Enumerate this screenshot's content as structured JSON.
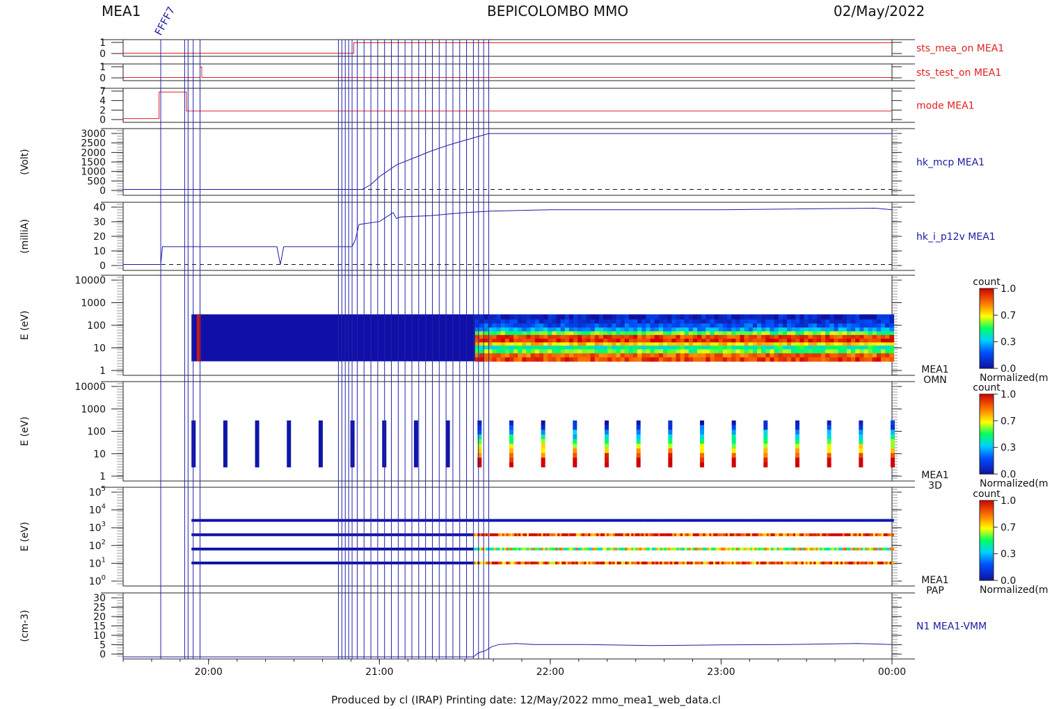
{
  "header": {
    "instrument": "MEA1",
    "mission": "BEPICOLOMBO MMO",
    "date": "02/May/2022"
  },
  "footer": {
    "text": "Produced by cl (IRAP)    Printing date: 12/May/2022    mmo_mea1_web_data.cl"
  },
  "colors": {
    "status_trace": "#e02020",
    "hk_trace": "#1a1aa0",
    "event_marker": "#2222aa"
  },
  "chart_data": {
    "type": "line",
    "x_axis": {
      "range": [
        "19:30",
        "00:00"
      ],
      "tick_labels": [
        "20:00",
        "21:00",
        "22:00",
        "23:00",
        "00:00"
      ],
      "tick_hours": [
        20,
        21,
        22,
        23,
        24
      ]
    },
    "event_markers": {
      "label_text": "FFFF7",
      "hours": [
        19.72,
        19.86,
        19.88,
        19.91,
        19.95,
        20.76,
        20.78,
        20.8,
        20.82,
        20.84,
        20.87,
        20.91,
        20.95,
        20.99,
        21.03,
        21.07,
        21.11,
        21.15,
        21.19,
        21.23,
        21.27,
        21.31,
        21.35,
        21.39,
        21.43,
        21.47,
        21.51,
        21.55,
        21.58,
        21.61,
        21.64
      ]
    },
    "panels": [
      {
        "type": "line",
        "trace_label": "sts_mea_on MEA1",
        "ylabel": "",
        "y_ticks": [
          "1",
          "0"
        ],
        "ylim": [
          -0.3,
          1.3
        ],
        "x": [
          19.5,
          20.85,
          20.85,
          24
        ],
        "y": [
          0,
          0,
          1,
          1
        ]
      },
      {
        "type": "line",
        "trace_label": "sts_test_on MEA1",
        "ylabel": "",
        "y_ticks": [
          "1",
          "0"
        ],
        "ylim": [
          -0.3,
          1.3
        ],
        "x": [
          19.5,
          19.95,
          19.95,
          19.96,
          19.96,
          24
        ],
        "y": [
          0,
          0,
          1,
          1,
          0,
          0
        ]
      },
      {
        "type": "line",
        "trace_label": "mode MEA1",
        "ylabel": "",
        "y_ticks": [
          "7",
          "4",
          "2",
          "0"
        ],
        "ylim": [
          -1,
          8
        ],
        "x": [
          19.5,
          19.71,
          19.71,
          19.87,
          19.87,
          24
        ],
        "y": [
          0,
          0,
          7,
          7,
          2,
          2
        ]
      },
      {
        "type": "line",
        "trace_label": "hk_mcp MEA1",
        "ylabel": "(Volt)",
        "y_ticks": [
          "3000",
          "2500",
          "2000",
          "1500",
          "1000",
          "500",
          "0"
        ],
        "ylim": [
          -300,
          3100
        ],
        "zero_line": true,
        "x": [
          19.5,
          20.9,
          20.95,
          21.0,
          21.05,
          21.1,
          21.2,
          21.3,
          21.4,
          21.5,
          21.6,
          21.64,
          24
        ],
        "y": [
          0,
          0,
          250,
          650,
          950,
          1250,
          1600,
          1950,
          2250,
          2500,
          2750,
          2850,
          2850
        ]
      },
      {
        "type": "line",
        "trace_label": "hk_i_p12v MEA1",
        "ylabel": "(milliA)",
        "y_ticks": [
          "40",
          "30",
          "20",
          "10",
          "0"
        ],
        "ylim": [
          -4,
          42
        ],
        "zero_line": true,
        "x": [
          19.5,
          19.72,
          19.73,
          20.4,
          20.42,
          20.44,
          20.84,
          20.86,
          20.88,
          21.0,
          21.08,
          21.1,
          21.12,
          21.3,
          21.5,
          21.65,
          22.0,
          23.0,
          23.9,
          24
        ],
        "y": [
          0,
          0,
          12,
          12,
          0,
          12,
          12,
          17,
          27,
          29,
          35,
          31,
          32,
          33,
          35,
          36,
          37,
          37,
          38,
          37
        ]
      },
      {
        "type": "heatmap",
        "trace_label": "MEA1 OMN",
        "ylabel": "E (eV)",
        "y_ticks": [
          "10000",
          "1000",
          "100",
          "10",
          "1"
        ],
        "colorbar": {
          "title": "count",
          "ticks": [
            "1.0",
            "0.7",
            "0.3",
            "0.0"
          ],
          "label": "Normalized(m"
        }
      },
      {
        "type": "heatmap",
        "trace_label": "MEA1 3D",
        "ylabel": "E (eV)",
        "y_ticks": [
          "10000",
          "1000",
          "100",
          "10",
          "1"
        ],
        "colorbar": {
          "title": "count",
          "ticks": [
            "1.0",
            "0.7",
            "0.3",
            "0.0"
          ],
          "label": "Normalized(m"
        }
      },
      {
        "type": "heatmap",
        "trace_label": "MEA1 PAP",
        "ylabel": "E (eV)",
        "y_ticks": [
          "10",
          "10",
          "10",
          "10",
          "10",
          "10"
        ],
        "y_tick_exponents": [
          "5",
          "4",
          "3",
          "2",
          "1",
          "0"
        ],
        "colorbar": {
          "title": "count",
          "ticks": [
            "1.0",
            "0.7",
            "0.3",
            "0.0"
          ],
          "label": "Normalized(m"
        }
      },
      {
        "type": "line",
        "trace_label": "N1 MEA1-VMM",
        "ylabel": "(cm-3)",
        "y_ticks": [
          "30",
          "25",
          "20",
          "15",
          "10",
          "5",
          "0"
        ],
        "ylim": [
          -1,
          31
        ],
        "x": [
          19.5,
          21.55,
          21.58,
          21.62,
          21.66,
          21.7,
          21.8,
          21.9,
          22.2,
          22.6,
          23.0,
          23.4,
          23.8,
          24
        ],
        "y": [
          0,
          0,
          2,
          3,
          5,
          6,
          6.5,
          6,
          6,
          5.5,
          5.8,
          6,
          6.5,
          6
        ]
      }
    ]
  }
}
